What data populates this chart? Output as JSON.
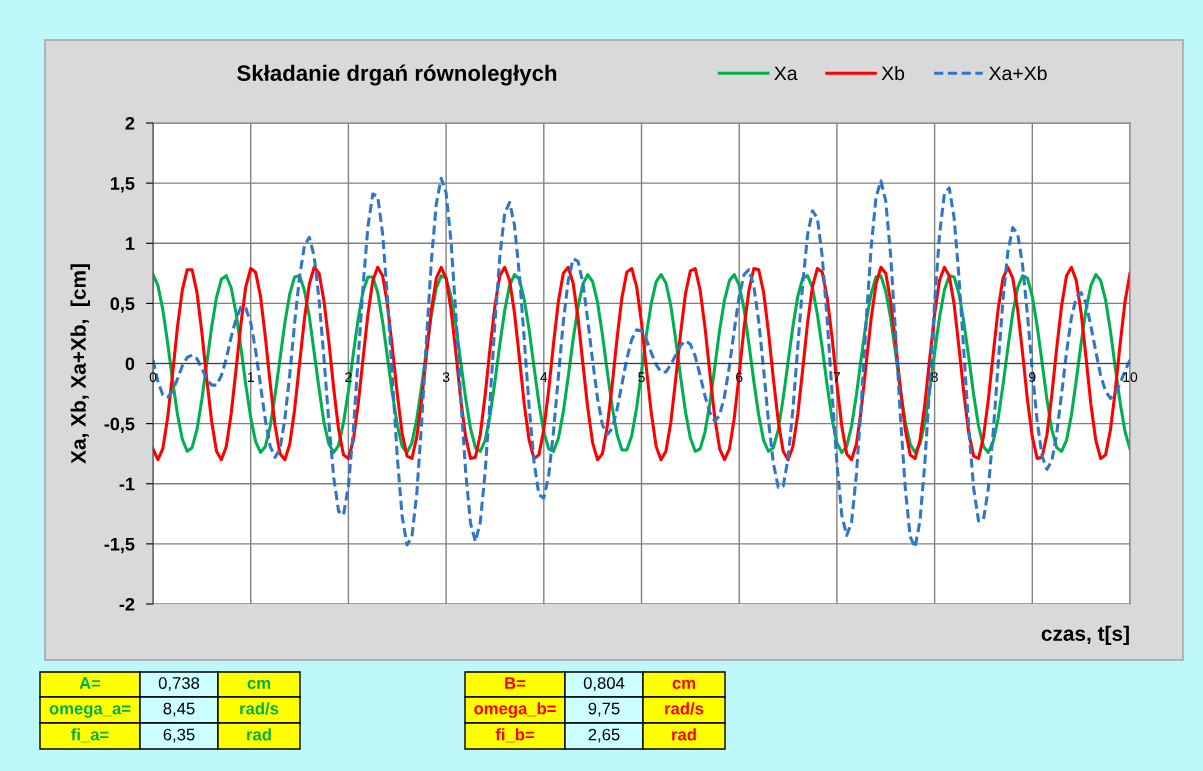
{
  "chart_data": {
    "type": "line",
    "title": "Składanie drgań równoległych",
    "xlabel": "czas, t[s]",
    "ylabel": "Xa, Xb, Xa+Xb,  [cm]",
    "x": [
      0,
      0.05,
      0.1,
      0.15,
      0.2,
      0.25,
      0.3,
      0.35,
      0.4,
      0.45,
      0.5,
      0.55,
      0.6,
      0.65,
      0.7,
      0.75,
      0.8,
      0.85,
      0.9,
      0.95,
      1,
      1.05,
      1.1,
      1.15,
      1.2,
      1.25,
      1.3,
      1.35,
      1.4,
      1.45,
      1.5,
      1.55,
      1.6,
      1.65,
      1.7,
      1.75,
      1.8,
      1.85,
      1.9,
      1.95,
      2,
      2.05,
      2.1,
      2.15,
      2.2,
      2.25,
      2.3,
      2.35,
      2.4,
      2.45,
      2.5,
      2.55,
      2.6,
      2.65,
      2.7,
      2.75,
      2.8,
      2.85,
      2.9,
      2.95,
      3,
      3.05,
      3.1,
      3.15,
      3.2,
      3.25,
      3.3,
      3.35,
      3.4,
      3.45,
      3.5,
      3.55,
      3.6,
      3.65,
      3.7,
      3.75,
      3.8,
      3.85,
      3.9,
      3.95,
      4,
      4.05,
      4.1,
      4.15,
      4.2,
      4.25,
      4.3,
      4.35,
      4.4,
      4.45,
      4.5,
      4.55,
      4.6,
      4.65,
      4.7,
      4.75,
      4.8,
      4.85,
      4.9,
      4.95,
      5,
      5.05,
      5.1,
      5.15,
      5.2,
      5.25,
      5.3,
      5.35,
      5.4,
      5.45,
      5.5,
      5.55,
      5.6,
      5.65,
      5.7,
      5.75,
      5.8,
      5.85,
      5.9,
      5.95,
      6,
      6.05,
      6.1,
      6.15,
      6.2,
      6.25,
      6.3,
      6.35,
      6.4,
      6.45,
      6.5,
      6.55,
      6.6,
      6.65,
      6.7,
      6.75,
      6.8,
      6.85,
      6.9,
      6.95,
      7,
      7.05,
      7.1,
      7.15,
      7.2,
      7.25,
      7.3,
      7.35,
      7.4,
      7.45,
      7.5,
      7.55,
      7.6,
      7.65,
      7.7,
      7.75,
      7.8,
      7.85,
      7.9,
      7.95,
      8,
      8.05,
      8.1,
      8.15,
      8.2,
      8.25,
      8.3,
      8.35,
      8.4,
      8.45,
      8.5,
      8.55,
      8.6,
      8.65,
      8.7,
      8.75,
      8.8,
      8.85,
      8.9,
      8.95,
      9,
      9.05,
      9.1,
      9.15,
      9.2,
      9.25,
      9.3,
      9.35,
      9.4,
      9.45,
      9.5,
      9.55,
      9.6,
      9.65,
      9.7,
      9.75,
      9.8,
      9.85,
      9.9,
      9.95,
      10
    ],
    "series": [
      {
        "name": "Xa",
        "color": "#00b050",
        "line_style": "solid",
        "values": [
          0.74,
          0.65,
          0.45,
          0.17,
          -0.14,
          -0.42,
          -0.63,
          -0.73,
          -0.7,
          -0.55,
          -0.3,
          0.0,
          0.3,
          0.55,
          0.7,
          0.73,
          0.63,
          0.42,
          0.13,
          -0.18,
          -0.45,
          -0.65,
          -0.74,
          -0.69,
          -0.52,
          -0.26,
          0.04,
          0.34,
          0.58,
          0.72,
          0.73,
          0.61,
          0.39,
          0.09,
          -0.21,
          -0.49,
          -0.67,
          -0.74,
          -0.68,
          -0.49,
          -0.23,
          0.08,
          0.37,
          0.6,
          0.72,
          0.72,
          0.59,
          0.35,
          0.05,
          -0.25,
          -0.51,
          -0.69,
          -0.74,
          -0.66,
          -0.46,
          -0.19,
          0.12,
          0.41,
          0.63,
          0.73,
          0.71,
          0.56,
          0.32,
          0.01,
          -0.29,
          -0.54,
          -0.7,
          -0.73,
          -0.64,
          -0.43,
          -0.15,
          0.16,
          0.44,
          0.65,
          0.74,
          0.7,
          0.53,
          0.28,
          -0.03,
          -0.33,
          -0.57,
          -0.71,
          -0.73,
          -0.62,
          -0.4,
          -0.11,
          0.2,
          0.47,
          0.66,
          0.74,
          0.68,
          0.51,
          0.24,
          -0.07,
          -0.36,
          -0.59,
          -0.72,
          -0.72,
          -0.6,
          -0.37,
          -0.07,
          0.24,
          0.5,
          0.68,
          0.74,
          0.67,
          0.48,
          0.2,
          -0.11,
          -0.4,
          -0.62,
          -0.73,
          -0.71,
          -0.57,
          -0.33,
          -0.03,
          0.28,
          0.53,
          0.69,
          0.74,
          0.65,
          0.45,
          0.16,
          -0.15,
          -0.43,
          -0.64,
          -0.73,
          -0.7,
          -0.55,
          -0.29,
          0.01,
          0.31,
          0.56,
          0.71,
          0.73,
          0.63,
          0.41,
          0.13,
          -0.18,
          -0.46,
          -0.66,
          -0.74,
          -0.69,
          -0.52,
          -0.26,
          0.05,
          0.35,
          0.58,
          0.72,
          0.73,
          0.6,
          0.38,
          0.09,
          -0.22,
          -0.49,
          -0.67,
          -0.74,
          -0.67,
          -0.49,
          -0.22,
          0.09,
          0.38,
          0.61,
          0.73,
          0.72,
          0.58,
          0.34,
          0.05,
          -0.26,
          -0.52,
          -0.69,
          -0.74,
          -0.65,
          -0.46,
          -0.18,
          0.13,
          0.42,
          0.63,
          0.73,
          0.71,
          0.56,
          0.31,
          0.01,
          -0.3,
          -0.55,
          -0.7,
          -0.73,
          -0.64,
          -0.43,
          -0.14,
          0.17,
          0.45,
          0.65,
          0.74,
          0.69,
          0.53,
          0.27,
          -0.04,
          -0.33,
          -0.57,
          -0.71
        ]
      },
      {
        "name": "Xb",
        "color": "#ff0000",
        "line_style": "solid",
        "values": [
          -0.71,
          -0.8,
          -0.71,
          -0.45,
          -0.09,
          0.3,
          0.61,
          0.78,
          0.78,
          0.59,
          0.26,
          -0.13,
          -0.48,
          -0.73,
          -0.8,
          -0.69,
          -0.42,
          -0.05,
          0.33,
          0.64,
          0.79,
          0.76,
          0.56,
          0.22,
          -0.17,
          -0.52,
          -0.75,
          -0.8,
          -0.67,
          -0.38,
          0.0,
          0.37,
          0.66,
          0.8,
          0.75,
          0.52,
          0.18,
          -0.21,
          -0.55,
          -0.76,
          -0.79,
          -0.64,
          -0.34,
          0.04,
          0.41,
          0.69,
          0.8,
          0.73,
          0.49,
          0.13,
          -0.25,
          -0.58,
          -0.77,
          -0.79,
          -0.61,
          -0.3,
          0.08,
          0.45,
          0.71,
          0.8,
          0.71,
          0.45,
          0.09,
          -0.3,
          -0.61,
          -0.79,
          -0.78,
          -0.59,
          -0.26,
          0.13,
          0.48,
          0.73,
          0.8,
          0.69,
          0.42,
          0.05,
          -0.34,
          -0.64,
          -0.79,
          -0.76,
          -0.55,
          -0.22,
          0.17,
          0.52,
          0.75,
          0.8,
          0.67,
          0.38,
          0.0,
          -0.37,
          -0.66,
          -0.8,
          -0.75,
          -0.52,
          -0.18,
          0.21,
          0.55,
          0.76,
          0.79,
          0.64,
          0.34,
          -0.04,
          -0.41,
          -0.69,
          -0.8,
          -0.73,
          -0.49,
          -0.13,
          0.25,
          0.58,
          0.77,
          0.79,
          0.61,
          0.3,
          -0.08,
          -0.45,
          -0.71,
          -0.8,
          -0.71,
          -0.45,
          -0.09,
          0.3,
          0.61,
          0.79,
          0.78,
          0.59,
          0.26,
          -0.13,
          -0.48,
          -0.73,
          -0.8,
          -0.69,
          -0.42,
          -0.05,
          0.34,
          0.64,
          0.79,
          0.76,
          0.55,
          0.22,
          -0.17,
          -0.52,
          -0.75,
          -0.8,
          -0.67,
          -0.38,
          0.0,
          0.37,
          0.66,
          0.8,
          0.75,
          0.52,
          0.18,
          -0.21,
          -0.55,
          -0.76,
          -0.79,
          -0.64,
          -0.34,
          0.04,
          0.41,
          0.69,
          0.8,
          0.73,
          0.49,
          0.13,
          -0.25,
          -0.58,
          -0.77,
          -0.79,
          -0.61,
          -0.3,
          0.08,
          0.45,
          0.71,
          0.8,
          0.71,
          0.45,
          0.09,
          -0.3,
          -0.61,
          -0.79,
          -0.78,
          -0.59,
          -0.26,
          0.13,
          0.48,
          0.73,
          0.8,
          0.69,
          0.42,
          0.05,
          -0.34,
          -0.64,
          -0.79,
          -0.76,
          -0.55,
          -0.22,
          0.17,
          0.52,
          0.75
        ]
      },
      {
        "name": "Xa+Xb",
        "color": "#2f75c9",
        "line_style": "dashed",
        "values": [
          0.03,
          -0.15,
          -0.26,
          -0.28,
          -0.23,
          -0.13,
          -0.02,
          0.05,
          0.07,
          0.04,
          -0.04,
          -0.13,
          -0.18,
          -0.18,
          -0.1,
          0.04,
          0.22,
          0.37,
          0.47,
          0.46,
          0.34,
          0.11,
          -0.18,
          -0.47,
          -0.69,
          -0.78,
          -0.71,
          -0.46,
          -0.09,
          0.34,
          0.72,
          0.98,
          1.05,
          0.89,
          0.53,
          0.04,
          -0.49,
          -0.95,
          -1.23,
          -1.26,
          -1.02,
          -0.56,
          0.04,
          0.64,
          1.14,
          1.41,
          1.39,
          1.08,
          0.54,
          -0.12,
          -0.77,
          -1.27,
          -1.51,
          -1.44,
          -1.08,
          -0.49,
          0.21,
          0.86,
          1.33,
          1.54,
          1.42,
          1.02,
          0.41,
          -0.28,
          -0.9,
          -1.33,
          -1.48,
          -1.32,
          -0.9,
          -0.31,
          0.34,
          0.89,
          1.25,
          1.34,
          1.15,
          0.74,
          0.2,
          -0.36,
          -0.82,
          -1.09,
          -1.12,
          -0.93,
          -0.56,
          -0.1,
          0.35,
          0.69,
          0.87,
          0.85,
          0.67,
          0.36,
          0.02,
          -0.29,
          -0.51,
          -0.59,
          -0.54,
          -0.38,
          -0.17,
          0.04,
          0.2,
          0.28,
          0.27,
          0.2,
          0.09,
          -0.01,
          -0.07,
          -0.07,
          -0.01,
          0.07,
          0.15,
          0.19,
          0.16,
          0.06,
          -0.1,
          -0.27,
          -0.41,
          -0.48,
          -0.43,
          -0.27,
          -0.02,
          0.28,
          0.56,
          0.74,
          0.78,
          0.64,
          0.35,
          -0.05,
          -0.48,
          -0.83,
          -1.03,
          -1.02,
          -0.79,
          -0.38,
          0.14,
          0.66,
          1.07,
          1.27,
          1.21,
          0.89,
          0.37,
          -0.24,
          -0.83,
          -1.26,
          -1.43,
          -1.32,
          -0.92,
          -0.33,
          0.35,
          0.96,
          1.38,
          1.52,
          1.35,
          0.9,
          0.26,
          -0.44,
          -1.04,
          -1.44,
          -1.53,
          -1.31,
          -0.83,
          -0.18,
          0.5,
          1.07,
          1.41,
          1.46,
          1.21,
          0.71,
          0.09,
          -0.54,
          -1.04,
          -1.31,
          -1.3,
          -1.04,
          -0.57,
          -0.01,
          0.53,
          0.93,
          1.13,
          1.08,
          0.82,
          0.41,
          -0.06,
          -0.48,
          -0.77,
          -0.88,
          -0.81,
          -0.58,
          -0.25,
          0.09,
          0.38,
          0.55,
          0.59,
          0.5,
          0.31,
          0.1,
          -0.1,
          -0.23,
          -0.29,
          -0.25,
          -0.16,
          -0.06,
          0.03
        ]
      }
    ],
    "xlim": [
      0,
      10
    ],
    "ylim": [
      -2,
      2
    ],
    "xticks": [
      0,
      1,
      2,
      3,
      4,
      5,
      6,
      7,
      8,
      9,
      10
    ],
    "yticks": [
      {
        "value": -2,
        "label": "-2"
      },
      {
        "value": -1.5,
        "label": "-1,5"
      },
      {
        "value": -1,
        "label": "-1"
      },
      {
        "value": -0.5,
        "label": "-0,5"
      },
      {
        "value": 0,
        "label": "0"
      },
      {
        "value": 0.5,
        "label": "0,5"
      },
      {
        "value": 1,
        "label": "1"
      },
      {
        "value": 1.5,
        "label": "1,5"
      },
      {
        "value": 2,
        "label": "2"
      }
    ],
    "grid": true,
    "legend": "top right",
    "marker": "none",
    "annotations": [
      "A=",
      "0,738",
      "cm",
      "B=",
      "0,804",
      "cm",
      "omega_a=",
      "8,45",
      "rad/s",
      "omega_b=",
      "9,75",
      "rad/s",
      "fi_a=",
      "6,35",
      "rad",
      "fi_b=",
      "2,65",
      "rad"
    ]
  }
}
